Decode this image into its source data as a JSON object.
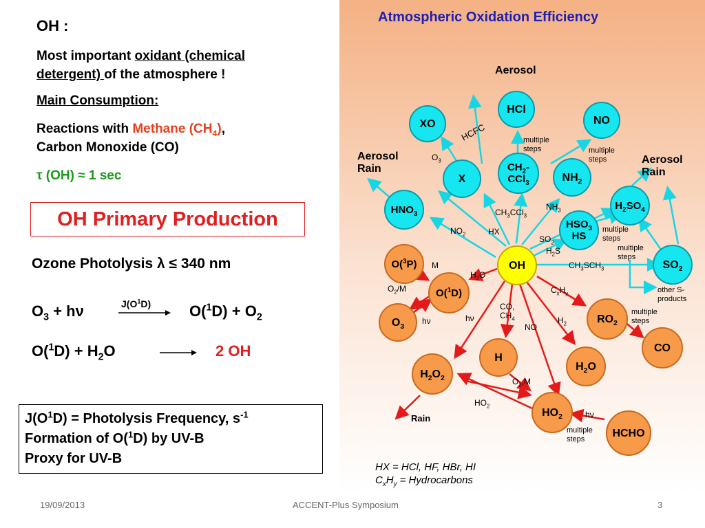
{
  "left": {
    "heading": "OH :",
    "line1_a": "Most important ",
    "line1_b": "oxidant (chemical",
    "line2_a": "detergent) ",
    "line2_b": "of the atmosphere !",
    "consumption": "Main Consumption:",
    "react_a": "Reactions with ",
    "react_b": "Methane (CH",
    "react_b_sub": "4",
    "react_b_end": ")",
    "react_c": ",",
    "react_d": "Carbon Monoxide (CO)",
    "lifetime": "τ (OH) ≈ 1 sec",
    "primary_title": "OH Primary Production",
    "ozone": "Ozone Photolysis λ ≤ 340 nm",
    "eq1_left_a": "O",
    "eq1_left_sub": "3",
    "eq1_left_b": " + hν",
    "eq1_arrow_a": "J(O",
    "eq1_arrow_sup": "1",
    "eq1_arrow_b": "D)",
    "eq1_right_a": "O(",
    "eq1_right_sup": "1",
    "eq1_right_b": "D) + O",
    "eq1_right_sub": "2",
    "eq2_left_a": "O(",
    "eq2_left_sup": "1",
    "eq2_left_b": "D) + H",
    "eq2_left_sub": "2",
    "eq2_left_c": "O",
    "eq2_right": "2 OH",
    "box1_a": "J(O",
    "box1_sup1": "1",
    "box1_b": "D) = Photolysis Frequency, s",
    "box1_sup2": "-1",
    "box2_a": "Formation of O(",
    "box2_sup": "1",
    "box2_b": "D) by UV-B",
    "box3": "Proxy for UV-B"
  },
  "diagram": {
    "title": "Atmospheric Oxidation Efficiency",
    "colors": {
      "title": "#1f1fb4",
      "cyan_arrow": "#17d6e3",
      "red_arrow": "#e41a1a"
    },
    "nodes": {
      "xo": "XO",
      "hcl": "HCl",
      "no": "NO",
      "x": "X",
      "ch2ccl3_a": "CH",
      "ch2ccl3_sub1": "2",
      "ch2ccl3_b": "-",
      "ch2ccl3_c": "CCl",
      "ch2ccl3_sub2": "3",
      "nh2_a": "NH",
      "nh2_sub": "2",
      "hno3_a": "HNO",
      "hno3_sub": "3",
      "h2so4_a": "H",
      "h2so4_sub1": "2",
      "h2so4_b": "SO",
      "h2so4_sub2": "4",
      "hso3_a": "HSO",
      "hso3_sub": "3",
      "hso3_b": "HS",
      "so2_a": "SO",
      "so2_sub": "2",
      "o3p_a": "O(",
      "o3p_sup": "3",
      "o3p_b": "P)",
      "oh": "OH",
      "o1d_a": "O(",
      "o1d_sup": "1",
      "o1d_b": "D)",
      "o3_a": "O",
      "o3_sub": "3",
      "ro2_a": "RO",
      "ro2_sub": "2",
      "co": "CO",
      "h": "H",
      "h2o2_a": "H",
      "h2o2_sub1": "2",
      "h2o2_b": "O",
      "h2o2_sub2": "2",
      "h2o_a": "H",
      "h2o_sub": "2",
      "h2o_b": "O",
      "ho2_a": "HO",
      "ho2_sub": "2",
      "hcho": "HCHO"
    },
    "labels": {
      "aerosol_top": "Aerosol",
      "aerosol_rain_left_1": "Aerosol",
      "aerosol_rain_left_2": "Rain",
      "aerosol_rain_right_1": "Aerosol",
      "aerosol_rain_right_2": "Rain",
      "hcfc": "HCFC",
      "multiple_steps_1a": "multiple",
      "multiple_steps_1b": "steps",
      "multiple_steps_2a": "multiple",
      "multiple_steps_2b": "steps",
      "multiple_steps_3a": "multiple",
      "multiple_steps_3b": "steps",
      "multiple_steps_4a": "multiple",
      "multiple_steps_4b": "steps",
      "multiple_steps_5a": "multiple",
      "multiple_steps_5b": "steps",
      "multiple_steps_6a": "multiple",
      "multiple_steps_6b": "steps",
      "o3_label_a": "O",
      "o3_label_sub": "3",
      "ch3ccl3_a": "CH",
      "ch3ccl3_sub1": "3",
      "ch3ccl3_b": "CCl",
      "ch3ccl3_sub2": "3",
      "nh3_a": "NH",
      "nh3_sub": "3",
      "no2_a": "NO",
      "no2_sub": "2",
      "hx": "HX",
      "so2_lbl_a": "SO",
      "so2_lbl_sub": "2",
      "h2s_a": "H",
      "h2s_sub": "2",
      "h2s_b": "S",
      "ch3sch3_a": "CH",
      "ch3sch3_sub1": "3",
      "ch3sch3_b": "SCH",
      "ch3sch3_sub2": "3",
      "other_s_1": "other S-",
      "other_s_2": "products",
      "m": "M",
      "h2o_lbl_a": "H",
      "h2o_lbl_sub": "2",
      "h2o_lbl_b": "O",
      "o2m_a": "O",
      "o2m_sub": "2",
      "o2m_b": "/M",
      "cxhy_a": "C",
      "cxhy_sub1": "x",
      "cxhy_b": "H",
      "cxhy_sub2": "y",
      "hv1": "hν",
      "hv2": "hν",
      "co_ch4_a": "CO,",
      "co_ch4_b": "CH",
      "co_ch4_sub": "4",
      "no_lbl": "NO",
      "h2_a": "H",
      "h2_sub": "2",
      "o2m2_a": "O",
      "o2m2_sub": "2",
      "o2m2_b": ",M",
      "ho2_lbl_a": "HO",
      "ho2_lbl_sub": "2",
      "rain": "Rain",
      "hv3": "hν",
      "legend1": "HX = HCl, HF, HBr, HI",
      "legend2_a": "C",
      "legend2_sub1": "x",
      "legend2_b": "H",
      "legend2_sub2": "y",
      "legend2_c": " = Hydrocarbons"
    }
  },
  "footer": {
    "date": "19/09/2013",
    "center": "ACCENT-Plus Symposium",
    "page": "3"
  }
}
